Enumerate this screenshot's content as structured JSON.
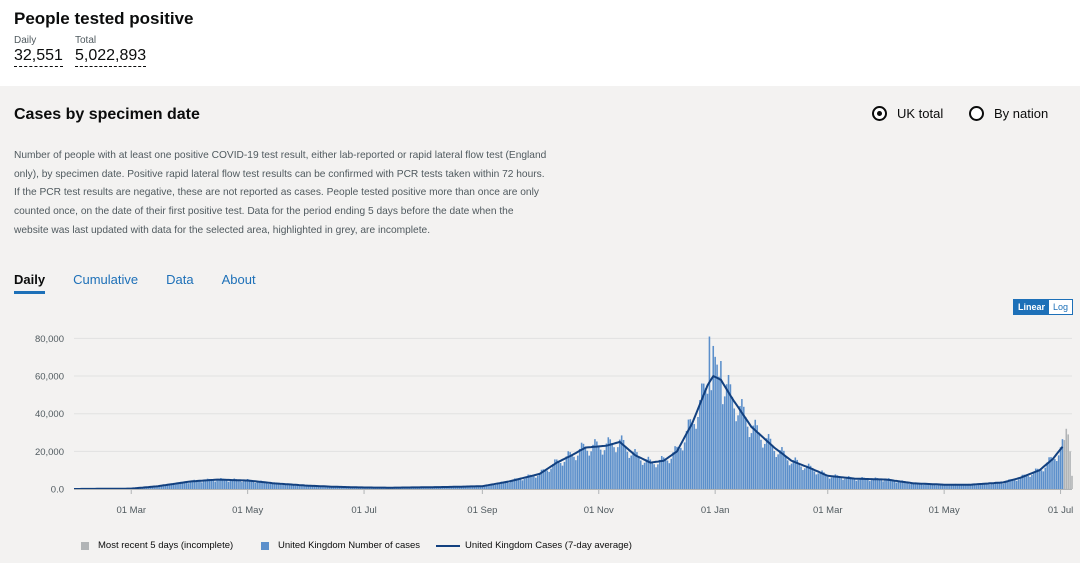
{
  "header": {
    "title": "People tested positive",
    "daily_label": "Daily",
    "daily_value": "32,551",
    "total_label": "Total",
    "total_value": "5,022,893"
  },
  "card": {
    "title": "Cases by specimen date",
    "radio_uk": "UK total",
    "radio_nation": "By nation",
    "selected": "UK total",
    "description": "Number of people with at least one positive COVID-19 test result, either lab-reported or rapid lateral flow test (England only), by specimen date. Positive rapid lateral flow test results can be confirmed with PCR tests taken within 72 hours. If the PCR test results are negative, these are not reported as cases. People tested positive more than once are only counted once, on the date of their first positive test. Data for the period ending 5 days before the date when the website was last updated with data for the selected area, highlighted in grey, are incomplete.",
    "tabs": [
      "Daily",
      "Cumulative",
      "Data",
      "About"
    ],
    "active_tab": "Daily",
    "scale_linear": "Linear",
    "scale_log": "Log"
  },
  "colors": {
    "bar": "#5b8fcb",
    "incomplete": "#b1b4b6",
    "line": "#12407f",
    "accent": "#1d70b8"
  },
  "chart_data": {
    "type": "bar",
    "title": "Cases by specimen date",
    "ylim": [
      0,
      85000
    ],
    "yticks": [
      0,
      20000,
      40000,
      60000,
      80000
    ],
    "ytick_labels": [
      "0.0",
      "20,000",
      "40,000",
      "60,000",
      "80,000"
    ],
    "x_start": "2020-01-31",
    "x_end": "2021-07-07",
    "xticks": [
      {
        "label": "01 Mar",
        "date": "2020-03-01"
      },
      {
        "label": "01 May",
        "date": "2020-05-01"
      },
      {
        "label": "01 Jul",
        "date": "2020-07-01"
      },
      {
        "label": "01 Sep",
        "date": "2020-09-01"
      },
      {
        "label": "01 Nov",
        "date": "2020-11-01"
      },
      {
        "label": "01 Jan",
        "date": "2021-01-01"
      },
      {
        "label": "01 Mar",
        "date": "2021-03-01"
      },
      {
        "label": "01 May",
        "date": "2021-05-01"
      },
      {
        "label": "01 Jul",
        "date": "2021-07-01"
      }
    ],
    "series": [
      {
        "name": "United Kingdom Number of cases",
        "type": "bar",
        "description": "daily bars reconstructed from the 7-day average shape with weekly variation"
      },
      {
        "name": "Most recent 5 days (incomplete)",
        "type": "bar"
      },
      {
        "name": "United Kingdom Cases (7-day average)",
        "type": "line",
        "points": [
          [
            "2020-01-31",
            0
          ],
          [
            "2020-03-01",
            200
          ],
          [
            "2020-03-15",
            1500
          ],
          [
            "2020-04-01",
            4000
          ],
          [
            "2020-04-15",
            5000
          ],
          [
            "2020-05-01",
            4500
          ],
          [
            "2020-05-15",
            3000
          ],
          [
            "2020-06-01",
            1800
          ],
          [
            "2020-06-15",
            1200
          ],
          [
            "2020-07-01",
            800
          ],
          [
            "2020-07-15",
            700
          ],
          [
            "2020-08-01",
            900
          ],
          [
            "2020-08-15",
            1100
          ],
          [
            "2020-09-01",
            1500
          ],
          [
            "2020-09-15",
            4000
          ],
          [
            "2020-10-01",
            8000
          ],
          [
            "2020-10-10",
            14000
          ],
          [
            "2020-10-18",
            18000
          ],
          [
            "2020-10-25",
            22000
          ],
          [
            "2020-11-05",
            23000
          ],
          [
            "2020-11-12",
            25000
          ],
          [
            "2020-11-20",
            18000
          ],
          [
            "2020-11-28",
            14000
          ],
          [
            "2020-12-05",
            15000
          ],
          [
            "2020-12-12",
            20000
          ],
          [
            "2020-12-20",
            35000
          ],
          [
            "2020-12-28",
            55000
          ],
          [
            "2020-12-31",
            60000
          ],
          [
            "2021-01-04",
            58000
          ],
          [
            "2021-01-10",
            48000
          ],
          [
            "2021-01-20",
            33000
          ],
          [
            "2021-02-01",
            22000
          ],
          [
            "2021-02-10",
            15000
          ],
          [
            "2021-02-20",
            11000
          ],
          [
            "2021-03-01",
            7000
          ],
          [
            "2021-03-15",
            5500
          ],
          [
            "2021-04-01",
            5000
          ],
          [
            "2021-04-15",
            3000
          ],
          [
            "2021-05-01",
            2300
          ],
          [
            "2021-05-15",
            2300
          ],
          [
            "2021-06-01",
            3500
          ],
          [
            "2021-06-10",
            6000
          ],
          [
            "2021-06-20",
            10000
          ],
          [
            "2021-06-27",
            16000
          ],
          [
            "2021-07-04",
            25000
          ]
        ]
      }
    ],
    "legend": [
      {
        "label": "Most recent 5 days (incomplete)",
        "kind": "incomplete"
      },
      {
        "label": "United Kingdom Number of cases",
        "kind": "bar"
      },
      {
        "label": "United Kingdom Cases (7-day average)",
        "kind": "line"
      }
    ],
    "legend_position": "bottom"
  }
}
